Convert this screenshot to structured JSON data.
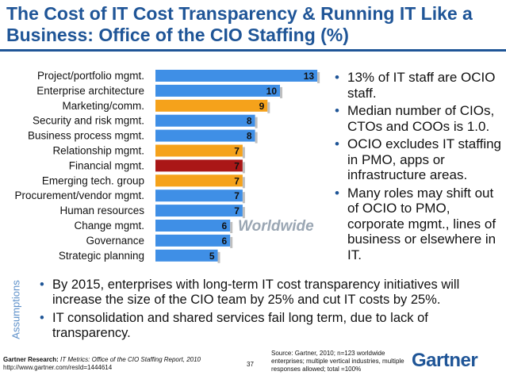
{
  "title": "The Cost of IT Cost Transparency & Running IT Like a Business: Office of the CIO Staffing (%)",
  "chart_data": {
    "type": "bar",
    "orientation": "horizontal",
    "categories": [
      "Project/portfolio mgmt.",
      "Enterprise architecture",
      "Marketing/comm.",
      "Security and risk mgmt.",
      "Business process mgmt.",
      "Relationship mgmt.",
      "Financial mgmt.",
      "Emerging tech. group",
      "Procurement/vendor mgmt.",
      "Human resources",
      "Change mgmt.",
      "Governance",
      "Strategic planning"
    ],
    "values": [
      13,
      10,
      9,
      8,
      8,
      7,
      7,
      7,
      7,
      7,
      6,
      6,
      5
    ],
    "colors": [
      "#3f8fe6",
      "#3f8fe6",
      "#f5a21b",
      "#3f8fe6",
      "#3f8fe6",
      "#f5a21b",
      "#aa1717",
      "#f5a21b",
      "#3f8fe6",
      "#3f8fe6",
      "#3f8fe6",
      "#3f8fe6",
      "#3f8fe6"
    ],
    "xlim": [
      0,
      14
    ],
    "grid": false,
    "annotation": "Worldwide"
  },
  "bullets": [
    "13% of IT staff are OCIO staff.",
    "Median number of CIOs, CTOs and COOs is 1.0.",
    "OCIO excludes IT staffing in PMO, apps or infrastructure areas.",
    "Many roles may shift out of OCIO to PMO, corporate mgmt., lines of business or elsewhere in IT."
  ],
  "assumptions": {
    "label": "Assumptions",
    "items": [
      "By 2015, enterprises with long-term IT cost transparency initiatives will increase the size of the CIO team by 25% and cut IT costs by 25%.",
      "IT consolidation and shared services fail long term, due to lack of transparency."
    ]
  },
  "footer": {
    "research_label": "Gartner Research:",
    "research_title": "IT Metrics: Office of the CIO Staffing Report, 2010",
    "url": "http://www.gartner.com/resId=1444614",
    "page": "37",
    "source": "Source: Gartner, 2010; n=123 worldwide enterprises; multiple vertical industries, multiple responses allowed; total =100%",
    "logo": "Gartner"
  },
  "bullet_glyph": "•"
}
